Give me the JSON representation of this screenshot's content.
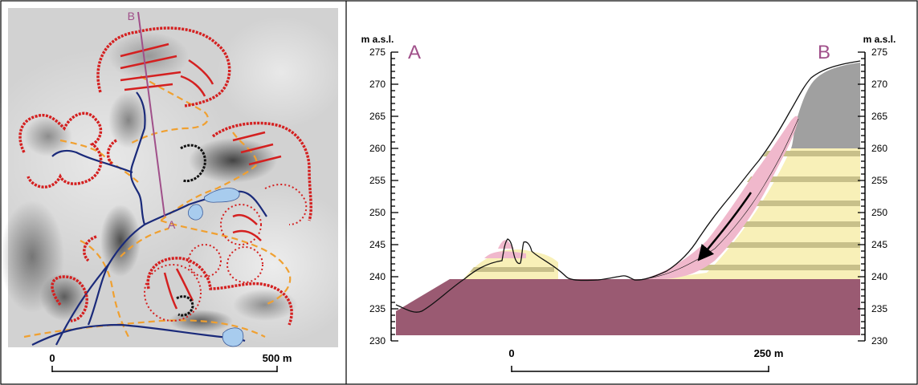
{
  "map_panel": {
    "label_a": "A",
    "label_b": "B",
    "scale_start": "0",
    "scale_end": "500 m"
  },
  "section_panel": {
    "label_a": "A",
    "label_b": "B",
    "axis_unit_left": "m a.s.l.",
    "axis_unit_right": "m a.s.l.",
    "elevation_ticks": [
      "275",
      "270",
      "265",
      "260",
      "255",
      "250",
      "245",
      "240",
      "235",
      "230"
    ],
    "scale_start": "0",
    "scale_end": "250 m"
  },
  "colors": {
    "scarp_red": "#d42020",
    "stream_blue": "#1a2a7a",
    "road_orange": "#f0a030",
    "profile_purple": "#a0508a",
    "lake_blue": "#a8ccee",
    "bedrock": "#9a5a72",
    "sandstone": "#f8f0b8",
    "marl_band": "#c8c08a",
    "deposit_pink": "#f0b8cc",
    "caprock_gray": "#a0a0a0"
  }
}
